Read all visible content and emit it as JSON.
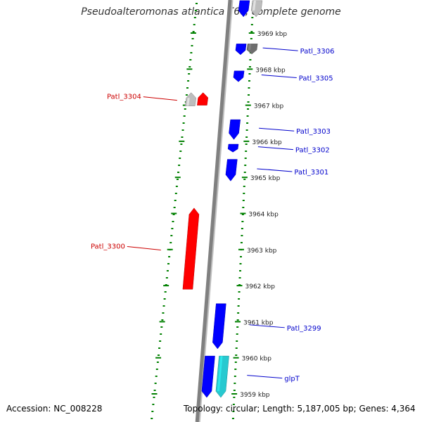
{
  "title": "Pseudoalteromonas atlantica T6c, complete genome",
  "footer": {
    "accession": "Accession: NC_008228",
    "topology": "Topology: circular;",
    "length": "Length: 5,187,005 bp;",
    "genes": "Genes: 4,364"
  },
  "colors": {
    "forward_gene": "#0000ff",
    "reverse_gene": "#ff0000",
    "label_forward": "#0000cc",
    "label_reverse": "#cc0000",
    "tick": "#008000",
    "backbone": "#808080",
    "grey_feature": "#bdbdbd",
    "dark_grey_feature": "#6e6e6e",
    "cyan_feature": "#27c9d0"
  },
  "scale": {
    "unit": "kbp",
    "ticks": [
      {
        "kbp": 3969,
        "label": "3969 kbp"
      },
      {
        "kbp": 3968,
        "label": "3968 kbp"
      },
      {
        "kbp": 3967,
        "label": "3967 kbp"
      },
      {
        "kbp": 3966,
        "label": "3966 kbp"
      },
      {
        "kbp": 3965,
        "label": "3965 kbp"
      },
      {
        "kbp": 3964,
        "label": "3964 kbp"
      },
      {
        "kbp": 3963,
        "label": "3963 kbp"
      },
      {
        "kbp": 3962,
        "label": "3962 kbp"
      },
      {
        "kbp": 3961,
        "label": "3961 kbp"
      },
      {
        "kbp": 3960,
        "label": "3960 kbp"
      },
      {
        "kbp": 3959,
        "label": "3959 kbp"
      }
    ]
  },
  "genes": [
    {
      "label": "",
      "strand": "+",
      "start_kbp": 3969.45,
      "end_kbp": 3969.9,
      "color": "forward_gene"
    },
    {
      "label": "",
      "strand": "+",
      "start_kbp": 3969.45,
      "end_kbp": 3969.9,
      "color": "grey_feature"
    },
    {
      "label": "Patl_3306",
      "strand": "+",
      "start_kbp": 3968.4,
      "end_kbp": 3968.7,
      "color": "forward_gene"
    },
    {
      "label": "",
      "strand": "+",
      "start_kbp": 3968.42,
      "end_kbp": 3968.7,
      "color": "dark_grey_feature"
    },
    {
      "label": "Patl_3305",
      "strand": "+",
      "start_kbp": 3967.65,
      "end_kbp": 3967.95,
      "color": "forward_gene"
    },
    {
      "label": "Patl_3304",
      "strand": "-",
      "start_kbp": 3967.0,
      "end_kbp": 3967.35,
      "color": "reverse_gene"
    },
    {
      "label": "",
      "strand": "-",
      "start_kbp": 3966.98,
      "end_kbp": 3967.35,
      "color": "grey_feature"
    },
    {
      "label": "Patl_3303",
      "strand": "+",
      "start_kbp": 3966.05,
      "end_kbp": 3966.6,
      "color": "forward_gene"
    },
    {
      "label": "Patl_3302",
      "strand": "+",
      "start_kbp": 3965.7,
      "end_kbp": 3965.92,
      "color": "forward_gene"
    },
    {
      "label": "Patl_3301",
      "strand": "+",
      "start_kbp": 3964.9,
      "end_kbp": 3965.5,
      "color": "forward_gene"
    },
    {
      "label": "Patl_3300",
      "strand": "-",
      "start_kbp": 3961.9,
      "end_kbp": 3964.15,
      "color": "reverse_gene"
    },
    {
      "label": "Patl_3299",
      "strand": "+",
      "start_kbp": 3960.25,
      "end_kbp": 3961.5,
      "color": "forward_gene"
    },
    {
      "label": "",
      "strand": "+",
      "start_kbp": 3958.9,
      "end_kbp": 3960.05,
      "color": "forward_gene"
    },
    {
      "label": "glpT",
      "strand": "+",
      "start_kbp": 3958.9,
      "end_kbp": 3960.05,
      "color": "cyan_feature"
    }
  ]
}
